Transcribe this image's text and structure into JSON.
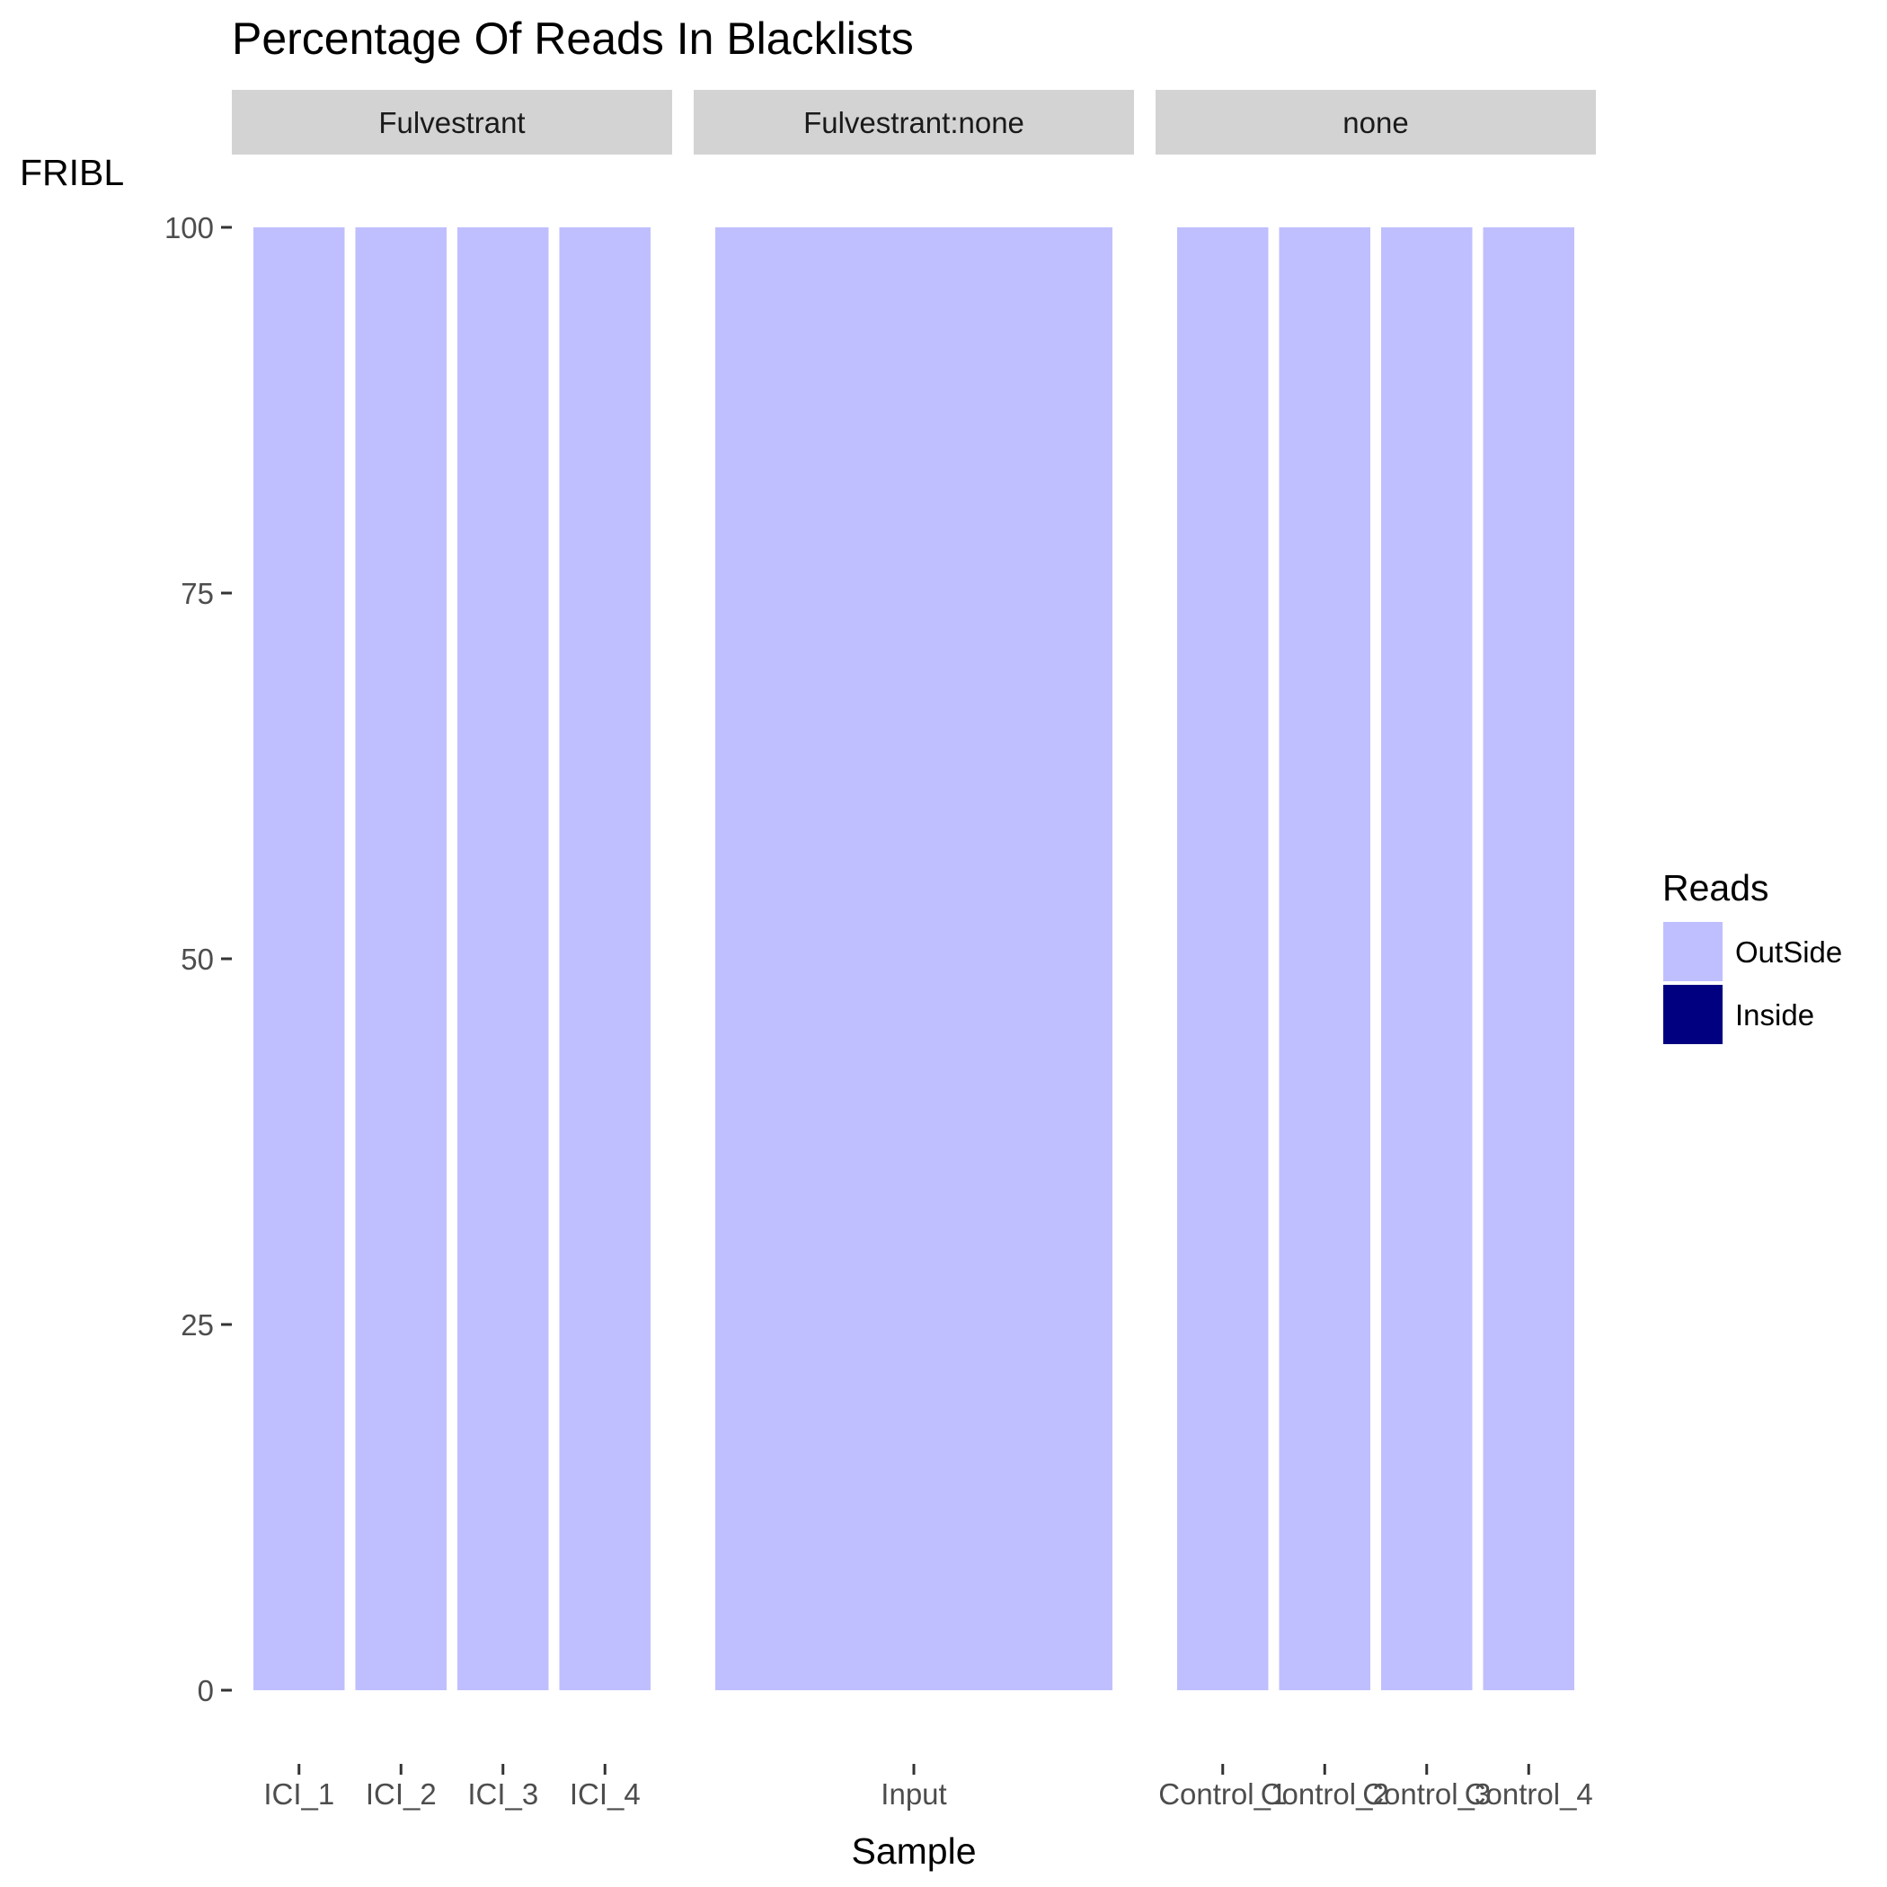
{
  "chart_data": {
    "type": "bar",
    "stacked": true,
    "title": "Percentage Of Reads In Blacklists",
    "xlabel": "Sample",
    "ylabel": "FRIBL",
    "ylim": [
      0,
      100
    ],
    "yticks": [
      0,
      25,
      50,
      75,
      100
    ],
    "grid": false,
    "legend": {
      "title": "Reads",
      "placement": "right",
      "entries": [
        {
          "name": "OutSide",
          "color": "#bfbfff"
        },
        {
          "name": "Inside",
          "color": "#000080"
        }
      ]
    },
    "facets": [
      {
        "label": "Fulvestrant",
        "categories": [
          "ICI_1",
          "ICI_2",
          "ICI_3",
          "ICI_4"
        ],
        "series": [
          {
            "name": "OutSide",
            "values": [
              100,
              100,
              100,
              100
            ]
          },
          {
            "name": "Inside",
            "values": [
              0,
              0,
              0,
              0
            ]
          }
        ]
      },
      {
        "label": "Fulvestrant:none",
        "categories": [
          "Input"
        ],
        "series": [
          {
            "name": "OutSide",
            "values": [
              100
            ]
          },
          {
            "name": "Inside",
            "values": [
              0
            ]
          }
        ]
      },
      {
        "label": "none",
        "categories": [
          "Control_1",
          "Control_2",
          "Control_3",
          "Control_4"
        ],
        "series": [
          {
            "name": "OutSide",
            "values": [
              100,
              100,
              100,
              100
            ]
          },
          {
            "name": "Inside",
            "values": [
              0,
              0,
              0,
              0
            ]
          }
        ]
      }
    ]
  }
}
